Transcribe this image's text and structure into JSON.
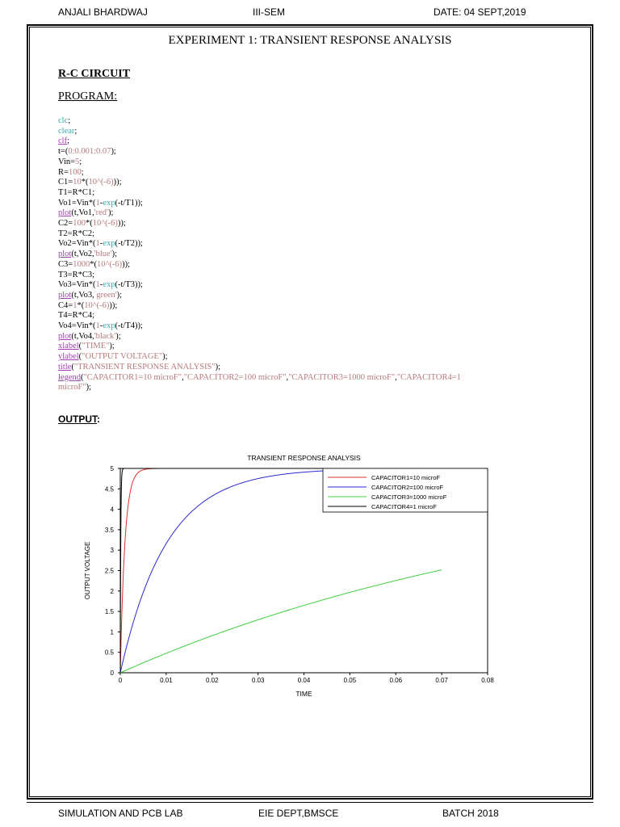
{
  "header": {
    "name": "ANJALI BHARDWAJ",
    "sem": "III-SEM",
    "date": "DATE: 04 SEPT,2019"
  },
  "title": "EXPERIMENT 1: TRANSIENT RESPONSE ANALYSIS",
  "section": "R-C CIRCUIT",
  "program_label": "PROGRAM:",
  "code": [
    [
      [
        "kw",
        "clc"
      ],
      [
        "op",
        ";"
      ]
    ],
    [
      [
        "kw",
        "clear"
      ],
      [
        "op",
        ";"
      ]
    ],
    [
      [
        "fn",
        "clf"
      ],
      [
        "op",
        ";"
      ]
    ],
    [
      [
        "op",
        "t=("
      ],
      [
        "num",
        "0:0.001:0.07"
      ],
      [
        "op",
        ");"
      ]
    ],
    [
      [
        "op",
        "Vin="
      ],
      [
        "num",
        "5"
      ],
      [
        "op",
        ";"
      ]
    ],
    [
      [
        "op",
        "R="
      ],
      [
        "num",
        "100"
      ],
      [
        "op",
        ";"
      ]
    ],
    [
      [
        "op",
        "C1="
      ],
      [
        "num",
        "10"
      ],
      [
        "op",
        "*("
      ],
      [
        "num",
        "10^(-6)"
      ],
      [
        "op",
        "));"
      ]
    ],
    [
      [
        "op",
        "T1=R*C1;"
      ]
    ],
    [
      [
        "op",
        "Vo1=Vin*("
      ],
      [
        "num",
        "1"
      ],
      [
        "op",
        "-"
      ],
      [
        "kw",
        "exp"
      ],
      [
        "op",
        "(-t/T1));"
      ]
    ],
    [
      [
        "fn",
        "plot"
      ],
      [
        "op",
        "(t,Vo1,"
      ],
      [
        "str",
        "'red'"
      ],
      [
        "op",
        ");"
      ]
    ],
    [
      [
        "op",
        "C2="
      ],
      [
        "num",
        "100"
      ],
      [
        "op",
        "*("
      ],
      [
        "num",
        "10^(-6)"
      ],
      [
        "op",
        "));"
      ]
    ],
    [
      [
        "op",
        "T2=R*C2;"
      ]
    ],
    [
      [
        "op",
        "Vo2=Vin*("
      ],
      [
        "num",
        "1"
      ],
      [
        "op",
        "-"
      ],
      [
        "kw",
        "exp"
      ],
      [
        "op",
        "(-t/T2));"
      ]
    ],
    [
      [
        "fn",
        "plot"
      ],
      [
        "op",
        "(t,Vo2,"
      ],
      [
        "str",
        "'blue'"
      ],
      [
        "op",
        ");"
      ]
    ],
    [
      [
        "op",
        "C3="
      ],
      [
        "num",
        "1000"
      ],
      [
        "op",
        "*("
      ],
      [
        "num",
        "10^(-6)"
      ],
      [
        "op",
        "));"
      ]
    ],
    [
      [
        "op",
        "T3=R*C3;"
      ]
    ],
    [
      [
        "op",
        "Vo3=Vin*("
      ],
      [
        "num",
        "1"
      ],
      [
        "op",
        "-"
      ],
      [
        "kw",
        "exp"
      ],
      [
        "op",
        "(-t/T3));"
      ]
    ],
    [
      [
        "fn",
        "plot"
      ],
      [
        "op",
        "(t,Vo3, "
      ],
      [
        "str",
        "green'"
      ],
      [
        "op",
        ");"
      ]
    ],
    [
      [
        "op",
        "C4="
      ],
      [
        "num",
        "1"
      ],
      [
        "op",
        "*("
      ],
      [
        "num",
        "10^(-6)"
      ],
      [
        "op",
        "));"
      ]
    ],
    [
      [
        "op",
        "T4=R*C4;"
      ]
    ],
    [
      [
        "op",
        "Vo4=Vin*("
      ],
      [
        "num",
        "1"
      ],
      [
        "op",
        "-"
      ],
      [
        "kw",
        "exp"
      ],
      [
        "op",
        "(-t/T4));"
      ]
    ],
    [
      [
        "fn",
        "plot"
      ],
      [
        "op",
        "(t,Vo4,"
      ],
      [
        "str",
        "'black'"
      ],
      [
        "op",
        ");"
      ]
    ],
    [
      [
        "fn",
        "xlabel"
      ],
      [
        "op",
        "("
      ],
      [
        "str",
        "\"TIME\""
      ],
      [
        "op",
        ");"
      ]
    ],
    [
      [
        "fn",
        "ylabel"
      ],
      [
        "op",
        "("
      ],
      [
        "str",
        "\"OUTPUT VOLTAGE\""
      ],
      [
        "op",
        ");"
      ]
    ],
    [
      [
        "fn",
        "title"
      ],
      [
        "op",
        "("
      ],
      [
        "str",
        "\"TRANSIENT RESPONSE ANALYSIS\""
      ],
      [
        "op",
        ");"
      ]
    ],
    [
      [
        "fn",
        "legend"
      ],
      [
        "op",
        "("
      ],
      [
        "str",
        "\"CAPACITOR1=10 microF\""
      ],
      [
        "op",
        ","
      ],
      [
        "str",
        "\"CAPACITOR2=100 microF\""
      ],
      [
        "op",
        ","
      ],
      [
        "str",
        "\"CAPACITOR3=1000 microF\""
      ],
      [
        "op",
        ","
      ],
      [
        "str",
        "\"CAPACITOR4=1"
      ]
    ],
    [
      [
        "str",
        "microF\""
      ],
      [
        "op",
        ");"
      ]
    ]
  ],
  "output_label": "OUTPUT",
  "output_colon": ":",
  "chart_data": {
    "type": "line",
    "title": "TRANSIENT RESPONSE ANALYSIS",
    "xlabel": "TIME",
    "ylabel": "OUTPUT VOLTAGE",
    "xlim": [
      0,
      0.08
    ],
    "ylim": [
      0,
      5
    ],
    "xticks": [
      "0",
      "0.01",
      "0.02",
      "0.03",
      "0.04",
      "0.05",
      "0.06",
      "0.07",
      "0.08"
    ],
    "yticks": [
      "0",
      "0.5",
      "1",
      "1.5",
      "2",
      "2.5",
      "3",
      "3.5",
      "4",
      "4.5",
      "5"
    ],
    "legend_position": "top-right",
    "series": [
      {
        "name": "CAPACITOR1=10 microF",
        "color": "#e0302e",
        "formula": "5*(1-exp(-t/0.001))",
        "x_range": [
          0,
          0.07
        ]
      },
      {
        "name": "CAPACITOR2=100 microF",
        "color": "#2a2ad0",
        "formula": "5*(1-exp(-t/0.01))",
        "x_range": [
          0,
          0.07
        ]
      },
      {
        "name": "CAPACITOR3=1000 microF",
        "color": "#3ecf3e",
        "formula": "5*(1-exp(-t/0.1))",
        "x_range": [
          0,
          0.07
        ]
      },
      {
        "name": "CAPACITOR4=1 microF",
        "color": "#000000",
        "formula": "5*(1-exp(-t/0.0001))",
        "x_range": [
          0,
          0.07
        ]
      }
    ]
  },
  "footer": {
    "left": "SIMULATION AND PCB LAB",
    "mid": "EIE DEPT,BMSCE",
    "right": "BATCH 2018"
  }
}
